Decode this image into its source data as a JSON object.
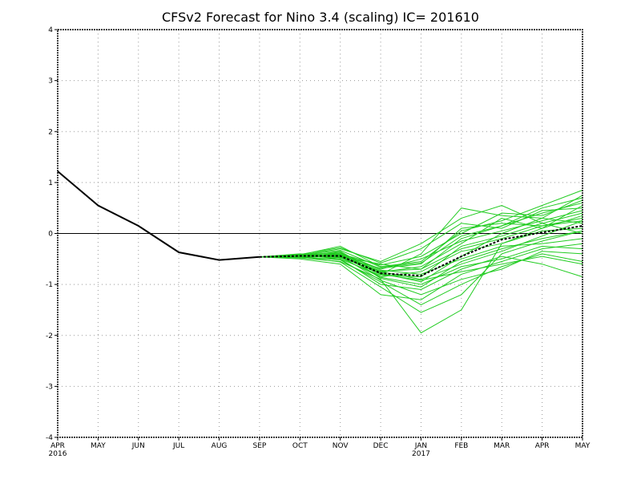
{
  "chart_data": {
    "type": "line",
    "title": "CFSv2 Forecast for Nino 3.4 (scaling)  IC= 201610",
    "xlabel": "",
    "ylabel": "",
    "x_ticks": [
      {
        "label": "APR",
        "sub": "2016"
      },
      {
        "label": "MAY",
        "sub": ""
      },
      {
        "label": "JUN",
        "sub": ""
      },
      {
        "label": "JUL",
        "sub": ""
      },
      {
        "label": "AUG",
        "sub": ""
      },
      {
        "label": "SEP",
        "sub": ""
      },
      {
        "label": "OCT",
        "sub": ""
      },
      {
        "label": "NOV",
        "sub": ""
      },
      {
        "label": "DEC",
        "sub": ""
      },
      {
        "label": "JAN",
        "sub": "2017"
      },
      {
        "label": "FEB",
        "sub": ""
      },
      {
        "label": "MAR",
        "sub": ""
      },
      {
        "label": "APR",
        "sub": ""
      },
      {
        "label": "MAY",
        "sub": ""
      }
    ],
    "y_ticks": [
      "-4",
      "-3",
      "-2",
      "-1",
      "0",
      "1",
      "2",
      "3",
      "4"
    ],
    "ylim": [
      -4,
      4
    ],
    "grid": true,
    "zero_line": true,
    "colors": {
      "observed": "#000000",
      "mean": "#000000",
      "members": "#22cc22",
      "grid": "#999999"
    },
    "observed": [
      1.22,
      0.55,
      0.15,
      -0.37,
      -0.52,
      -0.46
    ],
    "ensemble_mean": [
      -0.46,
      -0.44,
      -0.44,
      -0.78,
      -0.83,
      -0.45,
      -0.12,
      0.02,
      0.15
    ],
    "ensemble_members": [
      [
        -0.46,
        -0.42,
        -0.25,
        -0.65,
        -0.55,
        0.05,
        0.25,
        0.55,
        0.85
      ],
      [
        -0.46,
        -0.45,
        -0.35,
        -0.8,
        -0.4,
        0.5,
        0.35,
        0.3,
        0.75
      ],
      [
        -0.46,
        -0.48,
        -0.55,
        -0.9,
        -1.95,
        -1.5,
        -0.2,
        0.1,
        0.55
      ],
      [
        -0.46,
        -0.4,
        -0.45,
        -0.6,
        -0.7,
        -0.1,
        0.15,
        0.4,
        0.6
      ],
      [
        -0.46,
        -0.5,
        -0.6,
        -1.2,
        -1.3,
        -0.8,
        -0.55,
        -0.3,
        -0.2
      ],
      [
        -0.46,
        -0.44,
        -0.4,
        -0.75,
        -0.9,
        -0.6,
        -0.35,
        -0.05,
        0.25
      ],
      [
        -0.46,
        -0.43,
        -0.3,
        -0.55,
        -0.2,
        0.3,
        0.55,
        0.2,
        0.4
      ],
      [
        -0.46,
        -0.47,
        -0.5,
        -1.0,
        -1.1,
        -0.7,
        -0.45,
        -0.6,
        -0.85
      ],
      [
        -0.46,
        -0.41,
        -0.38,
        -0.7,
        -0.5,
        -0.15,
        0.05,
        0.25,
        0.45
      ],
      [
        -0.46,
        -0.45,
        -0.52,
        -0.95,
        -1.4,
        -1.0,
        -0.65,
        -0.4,
        -0.55
      ],
      [
        -0.46,
        -0.46,
        -0.42,
        -0.85,
        -0.75,
        -0.35,
        -0.2,
        0.05,
        0.1
      ],
      [
        -0.46,
        -0.42,
        -0.48,
        -0.68,
        -0.6,
        0.1,
        0.2,
        0.15,
        0.3
      ],
      [
        -0.46,
        -0.44,
        -0.36,
        -0.88,
        -1.05,
        -0.55,
        -0.3,
        -0.1,
        0.05
      ],
      [
        -0.46,
        -0.43,
        -0.46,
        -0.78,
        -0.95,
        -0.45,
        0.0,
        0.3,
        0.2
      ],
      [
        -0.46,
        -0.45,
        -0.44,
        -0.92,
        -1.2,
        -0.9,
        -0.7,
        -0.35,
        -0.4
      ],
      [
        -0.46,
        -0.44,
        -0.4,
        -0.62,
        -0.45,
        0.0,
        0.4,
        0.35,
        0.65
      ],
      [
        -0.46,
        -0.42,
        -0.5,
        -0.82,
        -0.85,
        -0.25,
        -0.05,
        0.2,
        0.0
      ],
      [
        -0.46,
        -0.46,
        -0.38,
        -0.72,
        -0.8,
        -0.5,
        -0.25,
        -0.2,
        -0.1
      ],
      [
        -0.46,
        -0.41,
        -0.28,
        -0.58,
        -0.3,
        0.2,
        0.1,
        0.45,
        0.5
      ],
      [
        -0.46,
        -0.45,
        -0.56,
        -1.05,
        -1.55,
        -1.2,
        -0.4,
        -0.15,
        0.05
      ],
      [
        -0.46,
        -0.43,
        -0.42,
        -0.76,
        -0.65,
        -0.2,
        0.3,
        0.1,
        0.35
      ],
      [
        -0.46,
        -0.44,
        -0.47,
        -0.86,
        -1.0,
        -0.65,
        -0.5,
        -0.25,
        -0.3
      ],
      [
        -0.46,
        -0.42,
        -0.33,
        -0.66,
        -0.58,
        -0.05,
        0.15,
        0.5,
        0.7
      ],
      [
        -0.46,
        -0.46,
        -0.45,
        -0.8,
        -0.92,
        -0.75,
        -0.6,
        -0.45,
        -0.6
      ],
      [
        -0.46,
        -0.44,
        -0.41,
        -0.74,
        -0.7,
        -0.3,
        -0.1,
        0.15,
        0.25
      ]
    ]
  }
}
